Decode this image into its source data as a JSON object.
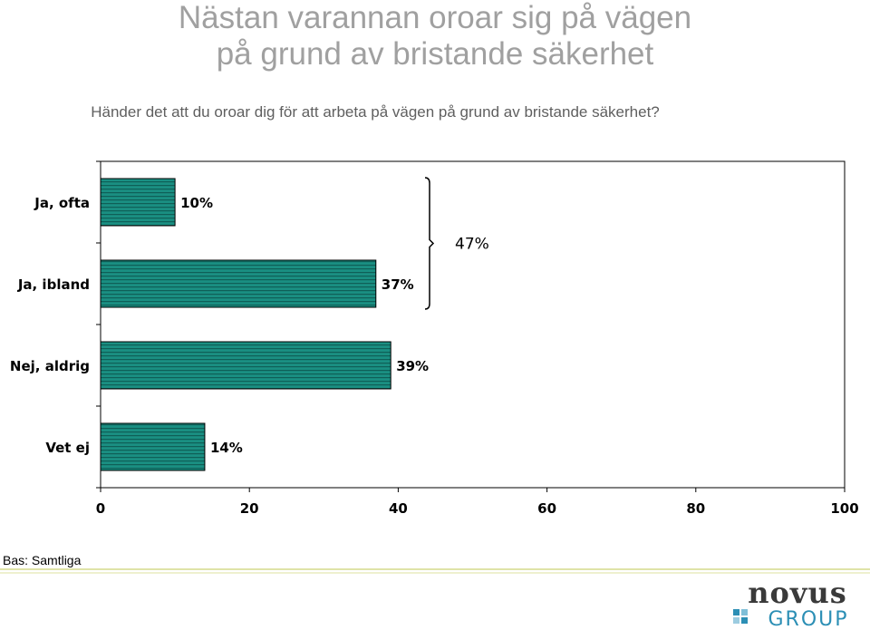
{
  "header": {
    "title_line1": "Nästan varannan oroar sig på vägen",
    "title_line2": "på grund av bristande säkerhet",
    "subtitle": "Händer det att du oroar dig för att arbeta på vägen på grund av bristande säkerhet?"
  },
  "chart_data": {
    "type": "bar",
    "orientation": "horizontal",
    "categories": [
      "Ja, ofta",
      "Ja, ibland",
      "Nej, aldrig",
      "Vet ej"
    ],
    "values": [
      10,
      37,
      39,
      14
    ],
    "value_labels": [
      "10%",
      "37%",
      "39%",
      "14%"
    ],
    "xlim": [
      0,
      100
    ],
    "x_ticks": [
      0,
      20,
      40,
      60,
      80,
      100
    ],
    "x_tick_labels": [
      "0",
      "20",
      "40",
      "60",
      "80",
      "100"
    ],
    "grid": false,
    "bar_color": "#1a8f82",
    "bracket": {
      "categories": [
        "Ja, ofta",
        "Ja, ibland"
      ],
      "label": "47%"
    }
  },
  "footer": {
    "base_note": "Bas: Samtliga"
  },
  "logo": {
    "word1": "novus",
    "word2": "GROUP",
    "color_dark": "#3a3a3a",
    "color_accent": "#2c8fb5"
  }
}
